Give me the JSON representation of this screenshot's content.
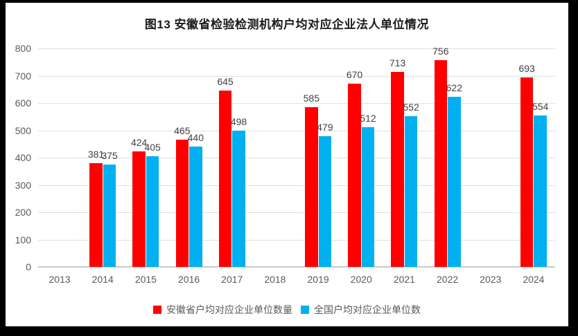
{
  "chart_data": {
    "type": "bar",
    "title": "图13 安徽省检验检测机构户均对应企业法人单位情况",
    "categories": [
      "2013",
      "2014",
      "2015",
      "2016",
      "2017",
      "2018",
      "2019",
      "2020",
      "2021",
      "2022",
      "2023",
      "2024"
    ],
    "series": [
      {
        "name": "安徽省户均对应企业单位数量",
        "color": "#FF0000",
        "values": [
          null,
          381,
          424,
          465,
          645,
          null,
          585,
          670,
          713,
          756,
          null,
          693
        ]
      },
      {
        "name": "全国户均对应企业单位数",
        "color": "#00B0F0",
        "values": [
          null,
          375,
          405,
          440,
          498,
          null,
          479,
          512,
          552,
          622,
          null,
          554
        ]
      }
    ],
    "ylim": [
      0,
      800
    ],
    "yticks": [
      0,
      100,
      200,
      300,
      400,
      500,
      600,
      700,
      800
    ],
    "grid": true,
    "legend_position": "bottom",
    "data_labels": true
  },
  "colors": {
    "series_anhui": "#FF0000",
    "series_national": "#00B0F0",
    "gridline": "#e0e0e0",
    "axis_text": "#595959",
    "data_label_text": "#404040",
    "frame_border": "#000000",
    "background": "#ffffff"
  }
}
